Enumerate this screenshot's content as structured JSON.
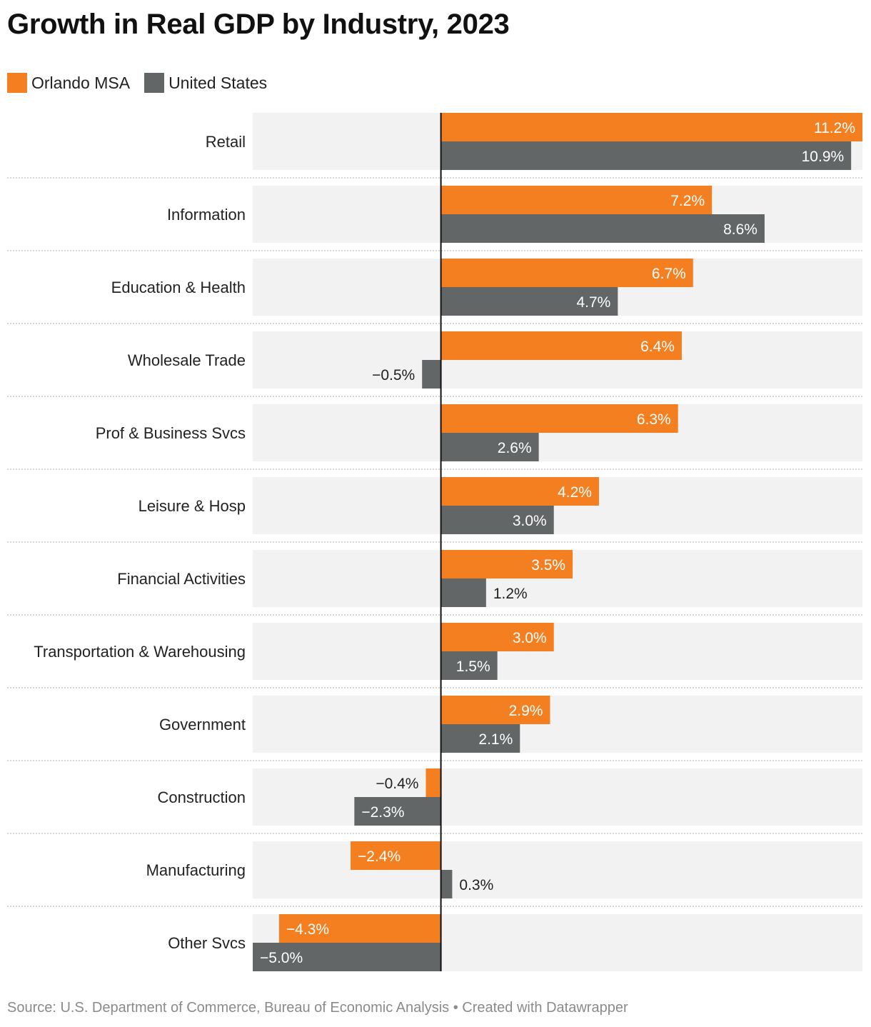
{
  "title": "Growth in Real GDP by Industry, 2023",
  "legend": [
    {
      "name": "Orlando MSA",
      "color": "#f47f20"
    },
    {
      "name": "United States",
      "color": "#636666"
    }
  ],
  "source": "Source: U.S. Department of Commerce, Bureau of Economic Analysis • Created with Datawrapper",
  "chart_data": {
    "type": "bar",
    "orientation": "horizontal",
    "title": "Growth in Real GDP by Industry, 2023",
    "categories": [
      "Retail",
      "Information",
      "Education & Health",
      "Wholesale Trade",
      "Prof & Business Svcs",
      "Leisure & Hosp",
      "Financial Activities",
      "Transportation & Warehousing",
      "Government",
      "Construction",
      "Manufacturing",
      "Other Svcs"
    ],
    "series": [
      {
        "name": "Orlando MSA",
        "color": "#f47f20",
        "values": [
          11.2,
          7.2,
          6.7,
          6.4,
          6.3,
          4.2,
          3.5,
          3.0,
          2.9,
          -0.4,
          -2.4,
          -4.3
        ]
      },
      {
        "name": "United States",
        "color": "#636666",
        "values": [
          10.9,
          8.6,
          4.7,
          -0.5,
          2.6,
          3.0,
          1.2,
          1.5,
          2.1,
          -2.3,
          0.3,
          -5.0
        ]
      }
    ],
    "value_labels": [
      [
        "11.2%",
        "10.9%"
      ],
      [
        "7.2%",
        "8.6%"
      ],
      [
        "6.7%",
        "4.7%"
      ],
      [
        "6.4%",
        "−0.5%"
      ],
      [
        "6.3%",
        "2.6%"
      ],
      [
        "4.2%",
        "3.0%"
      ],
      [
        "3.5%",
        "1.2%"
      ],
      [
        "3.0%",
        "1.5%"
      ],
      [
        "2.9%",
        "2.1%"
      ],
      [
        "−0.4%",
        "−2.3%"
      ],
      [
        "−2.4%",
        "0.3%"
      ],
      [
        "−4.3%",
        "−5.0%"
      ]
    ],
    "xlim": [
      -5.0,
      11.2
    ],
    "unit": "%",
    "background_color": "#f2f2f2"
  }
}
